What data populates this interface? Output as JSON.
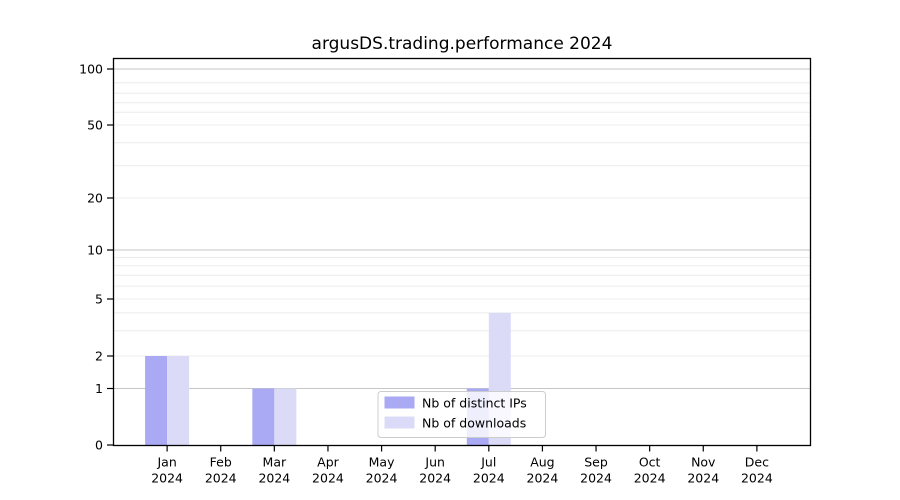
{
  "chart_data": {
    "type": "bar",
    "title": "argusDS.trading.performance 2024",
    "categories": [
      "Jan",
      "Feb",
      "Mar",
      "Apr",
      "May",
      "Jun",
      "Jul",
      "Aug",
      "Sep",
      "Oct",
      "Nov",
      "Dec"
    ],
    "category_year": "2024",
    "series": [
      {
        "name": "Nb of distinct IPs",
        "color": "#a9a9f4",
        "values": [
          2,
          0,
          1,
          0,
          0,
          0,
          1,
          0,
          0,
          0,
          0,
          0
        ]
      },
      {
        "name": "Nb of downloads",
        "color": "#dbdbf8",
        "values": [
          2,
          0,
          1,
          0,
          0,
          0,
          4,
          0,
          0,
          0,
          0,
          0
        ]
      }
    ],
    "xlabel": "",
    "ylabel": "",
    "yscale": "log-like with 0 baseline",
    "y_tick_labels": [
      "0",
      "1",
      "2",
      "5",
      "10",
      "20",
      "50",
      "100"
    ],
    "y_tick_values": [
      0,
      1,
      2,
      5,
      10,
      20,
      50,
      100
    ],
    "y_major_gridline_values": [
      1,
      10,
      100
    ],
    "y_minor_gridline_values": [
      2,
      3,
      4,
      5,
      6,
      7,
      8,
      9,
      20,
      30,
      40,
      50,
      60,
      70,
      80,
      90
    ],
    "ylim": [
      0,
      120
    ],
    "grid": true,
    "legend": {
      "position": "lower center",
      "entries": [
        "Nb of distinct IPs",
        "Nb of downloads"
      ]
    },
    "colors": {
      "distinct_ips_bar": "#a9a9f4",
      "downloads_bar": "#dbdbf8",
      "major_grid": "#c6c6c6",
      "minor_grid": "#ececec",
      "axis": "#000000",
      "legend_border": "#cccccc",
      "legend_background": "#ffffff"
    }
  }
}
